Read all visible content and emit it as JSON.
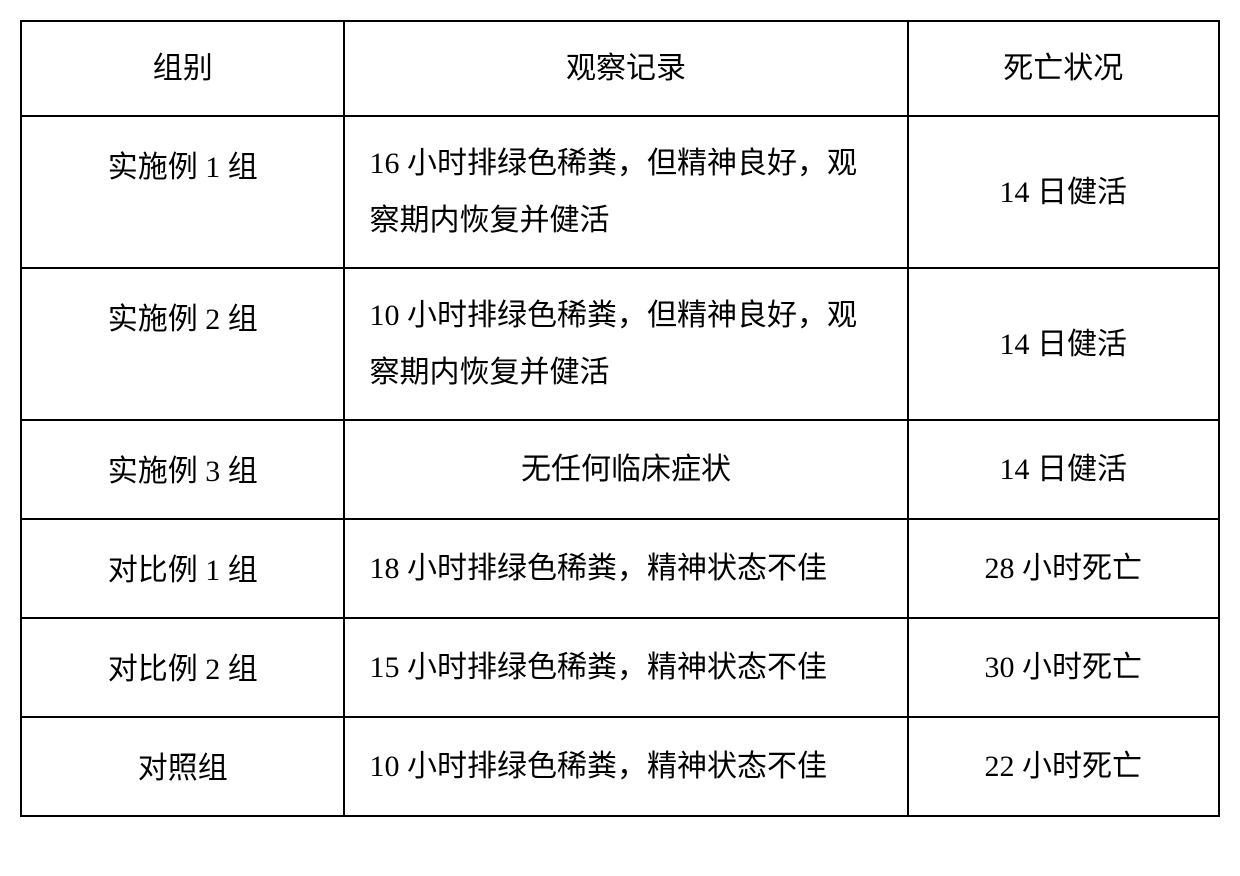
{
  "table": {
    "columns": [
      "组别",
      "观察记录",
      "死亡状况"
    ],
    "rows": [
      {
        "group": "实施例 1 组",
        "observation": "16 小时排绿色稀粪，但精神良好，观察期内恢复并健活",
        "death": "14 日健活",
        "obs_center": false
      },
      {
        "group": "实施例 2 组",
        "observation": "10 小时排绿色稀粪，但精神良好，观察期内恢复并健活",
        "death": "14 日健活",
        "obs_center": false
      },
      {
        "group": "实施例 3 组",
        "observation": "无任何临床症状",
        "death": "14 日健活",
        "obs_center": true
      },
      {
        "group": "对比例 1 组",
        "observation": "18 小时排绿色稀粪，精神状态不佳",
        "death": "28 小时死亡",
        "obs_center": false
      },
      {
        "group": "对比例 2 组",
        "observation": "15 小时排绿色稀粪，精神状态不佳",
        "death": "30 小时死亡",
        "obs_center": false
      },
      {
        "group": "对照组",
        "observation": "10 小时排绿色稀粪，精神状态不佳",
        "death": "22 小时死亡",
        "obs_center": false
      }
    ],
    "border_color": "#000000",
    "text_color": "#000000",
    "background_color": "#ffffff",
    "font_size_pt": 22,
    "col_widths_pct": [
      27,
      47,
      26
    ]
  }
}
